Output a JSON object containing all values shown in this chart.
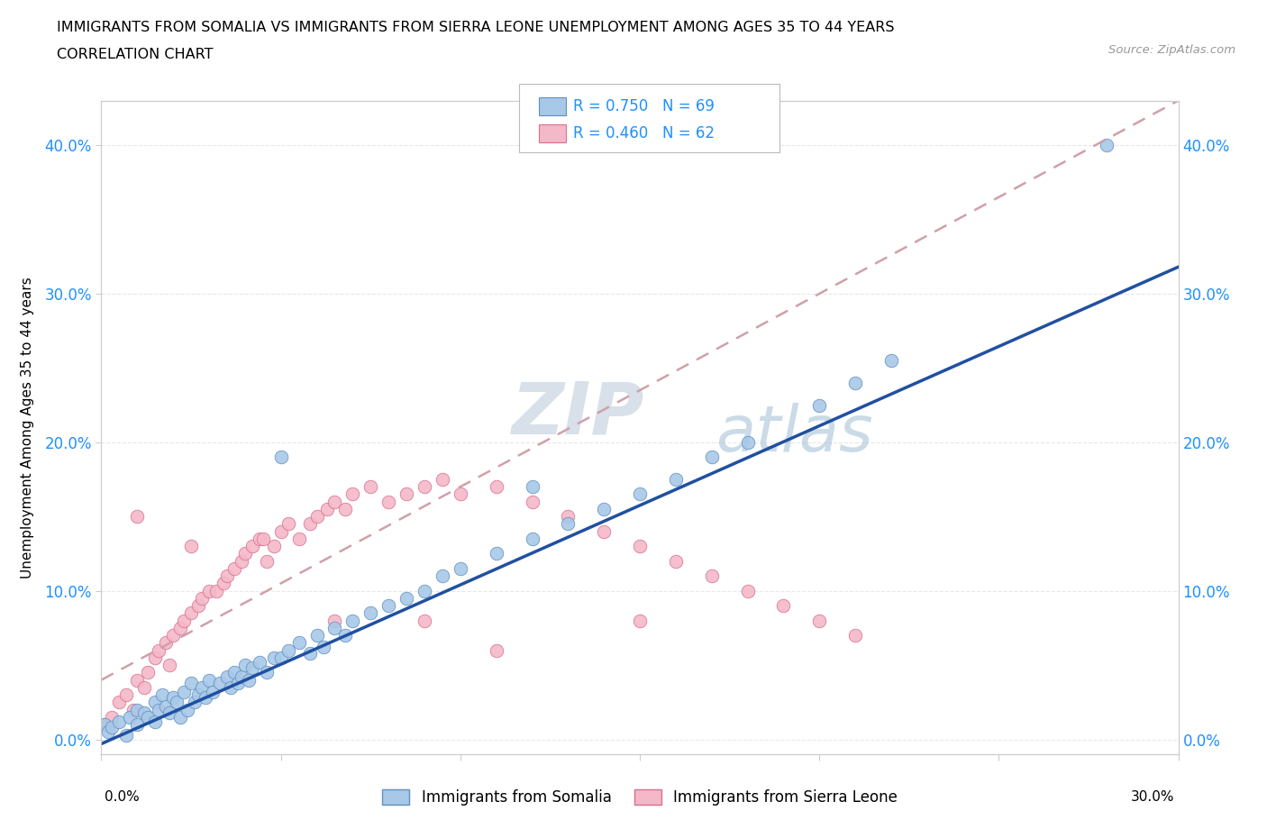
{
  "title_line1": "IMMIGRANTS FROM SOMALIA VS IMMIGRANTS FROM SIERRA LEONE UNEMPLOYMENT AMONG AGES 35 TO 44 YEARS",
  "title_line2": "CORRELATION CHART",
  "source": "Source: ZipAtlas.com",
  "ylabel": "Unemployment Among Ages 35 to 44 years",
  "yticks": [
    "0.0%",
    "10.0%",
    "20.0%",
    "30.0%",
    "40.0%"
  ],
  "ytick_vals": [
    0.0,
    0.1,
    0.2,
    0.3,
    0.4
  ],
  "xlim": [
    0.0,
    0.3
  ],
  "ylim": [
    -0.01,
    0.43
  ],
  "somalia_color": "#A8C8E8",
  "sierra_leone_color": "#F4B8C8",
  "somalia_edge_color": "#6090C0",
  "sierra_leone_edge_color": "#D87090",
  "somalia_line_color": "#2050A0",
  "sierra_leone_line_color": "#E08090",
  "somalia_R": 0.75,
  "somalia_N": 69,
  "sierra_leone_R": 0.46,
  "sierra_leone_N": 62,
  "legend_R_color": "#1E90FF",
  "watermark_zip_color": "#C0CCD8",
  "watermark_atlas_color": "#A8C0D8",
  "background_color": "#FFFFFF",
  "grid_color": "#E8E8E8",
  "grid_style": "--",
  "somalia_x": [
    0.001,
    0.002,
    0.003,
    0.005,
    0.007,
    0.008,
    0.01,
    0.01,
    0.012,
    0.013,
    0.015,
    0.015,
    0.016,
    0.017,
    0.018,
    0.019,
    0.02,
    0.021,
    0.022,
    0.023,
    0.024,
    0.025,
    0.026,
    0.027,
    0.028,
    0.029,
    0.03,
    0.031,
    0.033,
    0.035,
    0.036,
    0.037,
    0.038,
    0.039,
    0.04,
    0.041,
    0.042,
    0.044,
    0.046,
    0.048,
    0.05,
    0.052,
    0.055,
    0.058,
    0.06,
    0.062,
    0.065,
    0.068,
    0.07,
    0.075,
    0.08,
    0.085,
    0.09,
    0.095,
    0.1,
    0.11,
    0.12,
    0.13,
    0.14,
    0.15,
    0.16,
    0.17,
    0.18,
    0.2,
    0.21,
    0.22,
    0.28,
    0.05,
    0.12
  ],
  "somalia_y": [
    0.01,
    0.005,
    0.008,
    0.012,
    0.003,
    0.015,
    0.01,
    0.02,
    0.018,
    0.015,
    0.025,
    0.012,
    0.02,
    0.03,
    0.022,
    0.018,
    0.028,
    0.025,
    0.015,
    0.032,
    0.02,
    0.038,
    0.025,
    0.03,
    0.035,
    0.028,
    0.04,
    0.032,
    0.038,
    0.042,
    0.035,
    0.045,
    0.038,
    0.042,
    0.05,
    0.04,
    0.048,
    0.052,
    0.045,
    0.055,
    0.055,
    0.06,
    0.065,
    0.058,
    0.07,
    0.062,
    0.075,
    0.07,
    0.08,
    0.085,
    0.09,
    0.095,
    0.1,
    0.11,
    0.115,
    0.125,
    0.135,
    0.145,
    0.155,
    0.165,
    0.175,
    0.19,
    0.2,
    0.225,
    0.24,
    0.255,
    0.4,
    0.19,
    0.17
  ],
  "sierra_leone_x": [
    0.001,
    0.003,
    0.005,
    0.007,
    0.009,
    0.01,
    0.012,
    0.013,
    0.015,
    0.016,
    0.018,
    0.019,
    0.02,
    0.022,
    0.023,
    0.025,
    0.027,
    0.028,
    0.03,
    0.032,
    0.034,
    0.035,
    0.037,
    0.039,
    0.04,
    0.042,
    0.044,
    0.046,
    0.048,
    0.05,
    0.052,
    0.055,
    0.058,
    0.06,
    0.063,
    0.065,
    0.068,
    0.07,
    0.075,
    0.08,
    0.085,
    0.09,
    0.095,
    0.1,
    0.11,
    0.12,
    0.13,
    0.14,
    0.15,
    0.16,
    0.17,
    0.18,
    0.19,
    0.2,
    0.21,
    0.01,
    0.025,
    0.045,
    0.065,
    0.09,
    0.11,
    0.15
  ],
  "sierra_leone_y": [
    0.01,
    0.015,
    0.025,
    0.03,
    0.02,
    0.04,
    0.035,
    0.045,
    0.055,
    0.06,
    0.065,
    0.05,
    0.07,
    0.075,
    0.08,
    0.085,
    0.09,
    0.095,
    0.1,
    0.1,
    0.105,
    0.11,
    0.115,
    0.12,
    0.125,
    0.13,
    0.135,
    0.12,
    0.13,
    0.14,
    0.145,
    0.135,
    0.145,
    0.15,
    0.155,
    0.16,
    0.155,
    0.165,
    0.17,
    0.16,
    0.165,
    0.17,
    0.175,
    0.165,
    0.17,
    0.16,
    0.15,
    0.14,
    0.13,
    0.12,
    0.11,
    0.1,
    0.09,
    0.08,
    0.07,
    0.15,
    0.13,
    0.135,
    0.08,
    0.08,
    0.06,
    0.08
  ]
}
